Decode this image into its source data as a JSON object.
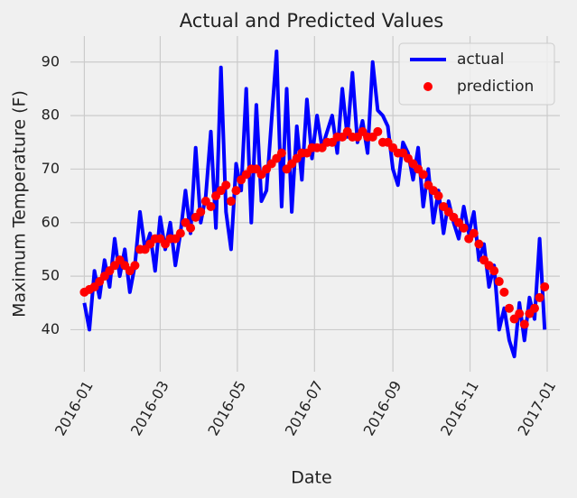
{
  "chart_data": {
    "type": "line",
    "title": "Actual and Predicted Values",
    "x_label": "Date",
    "y_label": "Maximum Temperature (F)",
    "x": [
      "2016-01-01",
      "2016-01-05",
      "2016-01-09",
      "2016-01-13",
      "2016-01-17",
      "2016-01-21",
      "2016-01-25",
      "2016-01-29",
      "2016-02-02",
      "2016-02-06",
      "2016-02-10",
      "2016-02-14",
      "2016-02-18",
      "2016-02-22",
      "2016-02-26",
      "2016-03-01",
      "2016-03-05",
      "2016-03-09",
      "2016-03-13",
      "2016-03-17",
      "2016-03-21",
      "2016-03-25",
      "2016-03-29",
      "2016-04-02",
      "2016-04-06",
      "2016-04-10",
      "2016-04-14",
      "2016-04-18",
      "2016-04-22",
      "2016-04-26",
      "2016-04-30",
      "2016-05-04",
      "2016-05-08",
      "2016-05-12",
      "2016-05-16",
      "2016-05-20",
      "2016-05-24",
      "2016-05-28",
      "2016-06-01",
      "2016-06-05",
      "2016-06-09",
      "2016-06-13",
      "2016-06-17",
      "2016-06-21",
      "2016-06-25",
      "2016-06-29",
      "2016-07-03",
      "2016-07-07",
      "2016-07-11",
      "2016-07-15",
      "2016-07-19",
      "2016-07-23",
      "2016-07-27",
      "2016-07-31",
      "2016-08-04",
      "2016-08-08",
      "2016-08-12",
      "2016-08-16",
      "2016-08-20",
      "2016-08-24",
      "2016-08-28",
      "2016-09-01",
      "2016-09-05",
      "2016-09-09",
      "2016-09-13",
      "2016-09-17",
      "2016-09-21",
      "2016-09-25",
      "2016-09-29",
      "2016-10-03",
      "2016-10-07",
      "2016-10-11",
      "2016-10-15",
      "2016-10-19",
      "2016-10-23",
      "2016-10-27",
      "2016-10-31",
      "2016-11-04",
      "2016-11-08",
      "2016-11-12",
      "2016-11-16",
      "2016-11-20",
      "2016-11-24",
      "2016-11-28",
      "2016-12-02",
      "2016-12-06",
      "2016-12-10",
      "2016-12-14",
      "2016-12-18",
      "2016-12-22",
      "2016-12-26",
      "2016-12-30"
    ],
    "series": [
      {
        "name": "actual",
        "color": "#0000ff",
        "style": "line",
        "values": [
          45,
          40,
          51,
          46,
          53,
          48,
          57,
          50,
          55,
          47,
          52,
          62,
          55,
          58,
          51,
          61,
          55,
          60,
          52,
          58,
          66,
          58,
          74,
          60,
          65,
          77,
          59,
          89,
          62,
          55,
          71,
          66,
          85,
          60,
          82,
          64,
          66,
          79,
          92,
          63,
          85,
          62,
          78,
          68,
          83,
          72,
          80,
          74,
          77,
          80,
          73,
          85,
          76,
          88,
          75,
          79,
          73,
          90,
          81,
          80,
          78,
          70,
          67,
          75,
          73,
          68,
          74,
          63,
          70,
          60,
          66,
          58,
          64,
          60,
          57,
          63,
          58,
          62,
          53,
          56,
          48,
          52,
          40,
          44,
          38,
          35,
          45,
          38,
          46,
          42,
          57,
          40
        ]
      },
      {
        "name": "prediction",
        "color": "#ff0000",
        "style": "dots",
        "values": [
          47,
          47.5,
          48,
          49,
          50,
          51,
          52,
          53,
          52,
          51,
          52,
          55,
          55,
          56,
          57,
          57,
          56,
          57,
          57,
          58,
          60,
          59,
          61,
          62,
          64,
          63,
          65,
          66,
          67,
          64,
          66,
          68,
          69,
          70,
          70,
          69,
          70,
          71,
          72,
          73,
          70,
          71,
          72,
          73,
          73,
          74,
          74,
          74,
          75,
          75,
          76,
          76,
          77,
          76,
          76,
          77,
          76,
          76,
          77,
          75,
          75,
          74,
          73,
          73,
          72,
          71,
          70,
          69,
          67,
          66,
          65,
          63,
          62,
          61,
          60,
          59,
          57,
          58,
          56,
          53,
          52,
          51,
          49,
          47,
          44,
          42,
          43,
          41,
          43,
          44,
          46,
          48
        ]
      }
    ],
    "xlim": [
      "2015-12-21",
      "2017-01-11"
    ],
    "xticks": [
      {
        "value": "2016-01-01",
        "label": "2016-01"
      },
      {
        "value": "2016-03-01",
        "label": "2016-03"
      },
      {
        "value": "2016-05-01",
        "label": "2016-05"
      },
      {
        "value": "2016-07-01",
        "label": "2016-07"
      },
      {
        "value": "2016-09-01",
        "label": "2016-09"
      },
      {
        "value": "2016-11-01",
        "label": "2016-11"
      },
      {
        "value": "2017-01-01",
        "label": "2017-01"
      }
    ],
    "ylim": [
      32.15,
      94.85
    ],
    "yticks": [
      40,
      50,
      60,
      70,
      80,
      90
    ],
    "grid": true,
    "legend": "upper right"
  }
}
